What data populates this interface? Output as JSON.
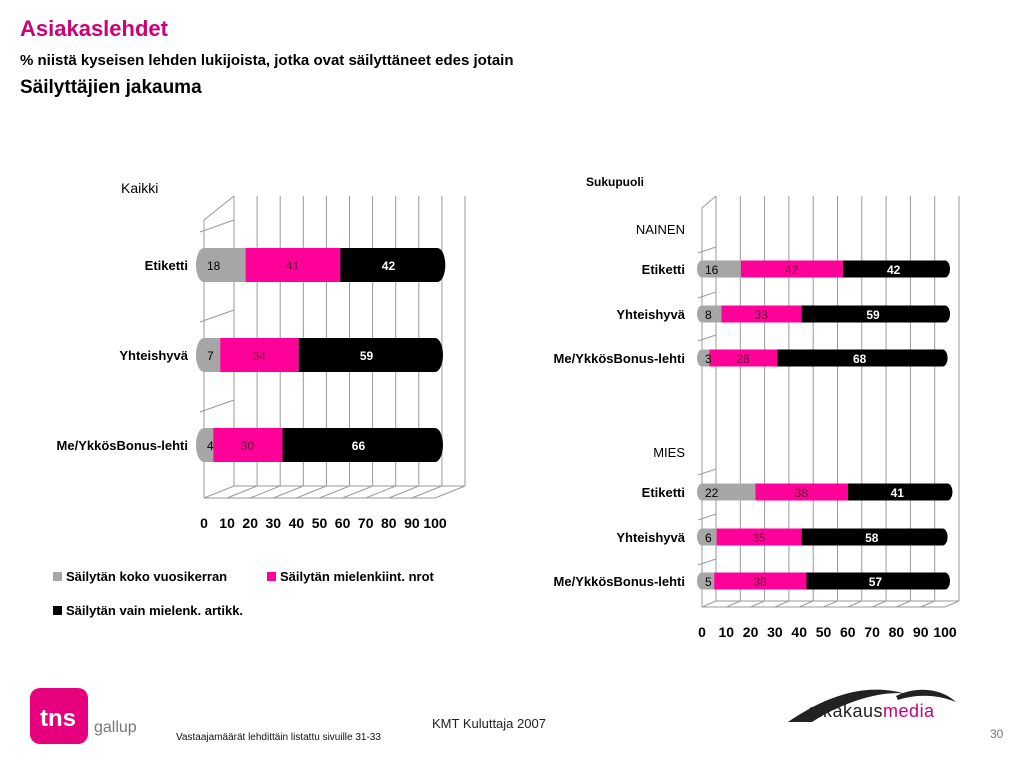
{
  "header": {
    "title": "Asiakaslehdet",
    "subtitle": "% niistä kyseisen lehden lukijoista, jotka ovat säilyttäneet edes jotain",
    "subtitle2": "Säilyttäjien jakauma"
  },
  "colors": {
    "grey": "#a6a6a6",
    "pink": "#ff0099",
    "black": "#000000",
    "accent": "#cc0077"
  },
  "legend": [
    {
      "label": "Säilytän koko vuosikerran",
      "color": "#a6a6a6"
    },
    {
      "label": "Säilytän mielenkiint. nrot",
      "color": "#ff0099"
    },
    {
      "label": "Säilytän vain mielenk. artikk.",
      "color": "#000000"
    }
  ],
  "chart_data": [
    {
      "type": "bar",
      "orientation": "horizontal",
      "stacked": true,
      "title": "Kaikki",
      "categories": [
        "Etiketti",
        "Yhteishyvä",
        "Me/YkkösBonus-lehti"
      ],
      "series": [
        {
          "name": "Säilytän koko vuosikerran",
          "values": [
            18,
            7,
            4
          ]
        },
        {
          "name": "Säilytän mielenkiint. nrot",
          "values": [
            41,
            34,
            30
          ]
        },
        {
          "name": "Säilytän vain mielenk. artikk.",
          "values": [
            42,
            59,
            66
          ]
        }
      ],
      "xlim": [
        0,
        100
      ],
      "xticks": [
        "0",
        "10",
        "20",
        "30",
        "40",
        "50",
        "60",
        "70",
        "80",
        "90",
        "100"
      ],
      "grid": true,
      "legend": "bottom"
    },
    {
      "type": "bar",
      "orientation": "horizontal",
      "stacked": true,
      "title": "Sukupuoli",
      "groups": [
        "NAINEN",
        "MIES"
      ],
      "categories": [
        "Etiketti",
        "Yhteishyvä",
        "Me/YkkösBonus-lehti",
        "Etiketti",
        "Yhteishyvä",
        "Me/YkkösBonus-lehti"
      ],
      "series": [
        {
          "name": "Säilytän koko vuosikerran",
          "values": [
            16,
            8,
            3,
            22,
            6,
            5
          ]
        },
        {
          "name": "Säilytän mielenkiint. nrot",
          "values": [
            42,
            33,
            28,
            38,
            35,
            38
          ]
        },
        {
          "name": "Säilytän vain mielenk. artikk.",
          "values": [
            42,
            59,
            68,
            41,
            58,
            57
          ]
        }
      ],
      "xlim": [
        0,
        100
      ],
      "xticks": [
        "0",
        "10",
        "20",
        "30",
        "40",
        "50",
        "60",
        "70",
        "80",
        "90",
        "100"
      ],
      "grid": true
    }
  ],
  "footer": {
    "center": "KMT Kuluttaja 2007",
    "note": "Vastaajamäärät lehdittäin listattu sivuille 31-33",
    "page": "30"
  },
  "logos": {
    "tns": "tns",
    "gallup": "gallup",
    "aik_a": "aikakaus",
    "aik_b": "media"
  }
}
